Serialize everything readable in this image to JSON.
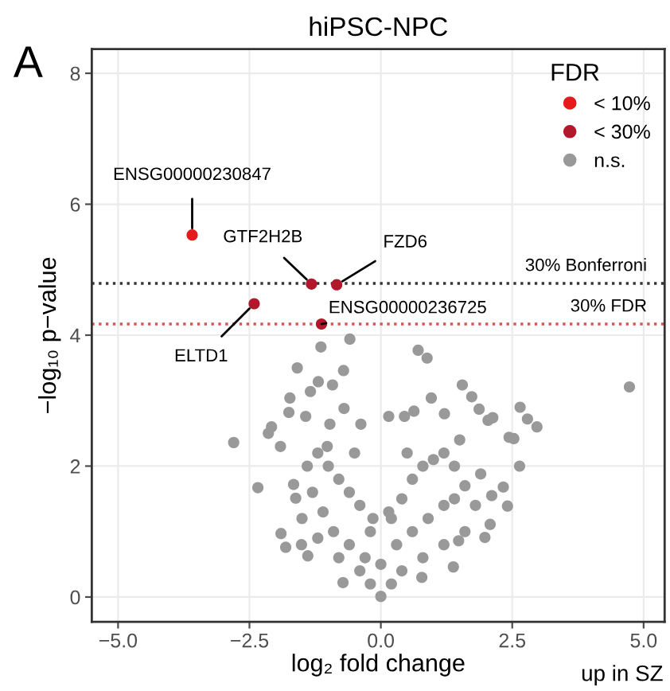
{
  "chart_data": {
    "type": "scatter",
    "title": "hiPSC-NPC",
    "xlabel": "log₂ fold change",
    "ylabel": "−log₁₀ p−value",
    "legend_title": "FDR",
    "legend": "top right",
    "grid": true,
    "marker": "circle",
    "xlim": [
      -5.5,
      5.4
    ],
    "ylim": [
      -0.38,
      8.37
    ],
    "xticks": [
      {
        "value": -5,
        "label": "−5.0"
      },
      {
        "value": -2.5,
        "label": "−2.5"
      },
      {
        "value": 0,
        "label": "0.0"
      },
      {
        "value": 2.5,
        "label": "2.5"
      },
      {
        "value": 5,
        "label": "5.0"
      }
    ],
    "yticks": [
      0,
      2,
      4,
      6,
      8
    ],
    "series": [
      {
        "name": "n.s.",
        "color": "#999999",
        "x": [
          -1.14,
          -0.59,
          0.71,
          0.88,
          -1.59,
          -0.71,
          -1.19,
          -0.92,
          -1.34,
          -1.73,
          0.96,
          1.55,
          1.73,
          4.73,
          1.87,
          2.65,
          2.79,
          2.97,
          2.04,
          2.13,
          1.21,
          0.63,
          0.15,
          0.45,
          -1.75,
          -1.43,
          -0.7,
          -2.08,
          -2.14,
          -2.8,
          -1.91,
          -0.97,
          -0.38,
          2.44,
          2.53,
          2.64,
          -2.34,
          -1.66,
          2.33,
          2.41,
          2.11,
          1.9,
          -1.9,
          -1.81,
          -1.51,
          -1.39,
          1.98,
          2.08,
          -0.72,
          0.0,
          1.38,
          0.78,
          1.48,
          -1.62,
          -1.02,
          -1.2,
          -1.0,
          -0.8,
          -0.6,
          -0.4,
          -0.2,
          0.2,
          0.4,
          0.6,
          0.8,
          1.0,
          1.2,
          1.4,
          1.6,
          1.8,
          1.6,
          1.2,
          0.8,
          0.4,
          0.2,
          -0.2,
          -0.4,
          -0.8,
          -1.2,
          -1.5,
          -1.3,
          -1.1,
          -0.9,
          -0.6,
          -0.3,
          0.0,
          0.3,
          0.6,
          0.9,
          1.2,
          1.4,
          -0.5,
          0.5,
          -1.4,
          1.5,
          0.15,
          -0.15
        ],
        "values": [
          3.82,
          3.94,
          3.77,
          3.65,
          3.5,
          3.46,
          3.29,
          3.24,
          3.14,
          3.04,
          3.04,
          3.24,
          3.06,
          3.21,
          2.87,
          2.9,
          2.72,
          2.6,
          2.7,
          2.74,
          2.8,
          2.84,
          2.76,
          2.76,
          2.82,
          2.76,
          2.88,
          2.6,
          2.5,
          2.36,
          2.3,
          2.64,
          2.64,
          2.44,
          2.42,
          2.0,
          1.67,
          1.72,
          1.68,
          1.39,
          1.55,
          1.88,
          0.97,
          0.76,
          0.8,
          0.63,
          0.91,
          1.11,
          0.22,
          0.01,
          0.46,
          0.3,
          0.86,
          1.51,
          2.3,
          2.2,
          2.0,
          1.8,
          1.6,
          1.4,
          1.0,
          1.2,
          1.5,
          1.8,
          2.0,
          2.1,
          2.2,
          2.0,
          1.7,
          1.4,
          1.0,
          0.8,
          0.6,
          0.4,
          0.2,
          0.2,
          0.4,
          0.6,
          0.9,
          1.2,
          1.6,
          1.3,
          1.0,
          0.8,
          0.6,
          0.5,
          0.8,
          1.0,
          1.2,
          1.4,
          1.5,
          2.2,
          2.2,
          2.0,
          2.4,
          1.3,
          1.2
        ]
      },
      {
        "name": "< 30%",
        "color": "#b2182b",
        "x": [
          -1.32,
          -0.84,
          -2.41,
          -1.13
        ],
        "values": [
          4.78,
          4.77,
          4.48,
          4.17
        ]
      },
      {
        "name": "< 10%",
        "color": "#e41a1c",
        "x": [
          -3.59
        ],
        "values": [
          5.53
        ]
      }
    ],
    "ref_lines": [
      {
        "axis": "y",
        "value": 4.79,
        "label": "30% Bonferroni",
        "color": "#333333",
        "line_style": "dotted"
      },
      {
        "axis": "y",
        "value": 4.17,
        "label": "30% FDR",
        "color": "#d9534f",
        "line_style": "dotted"
      }
    ],
    "annotations": [
      "A",
      {
        "text": "ENSG00000230847",
        "x": -3.59,
        "y": 5.53
      },
      {
        "text": "GTF2H2B",
        "x": -1.32,
        "y": 4.78
      },
      {
        "text": "FZD6",
        "x": -0.84,
        "y": 4.77
      },
      {
        "text": "ENSG00000236725",
        "x": -1.13,
        "y": 4.17
      },
      {
        "text": "ELTD1",
        "x": -2.41,
        "y": 4.48
      },
      "up in SZ"
    ]
  }
}
